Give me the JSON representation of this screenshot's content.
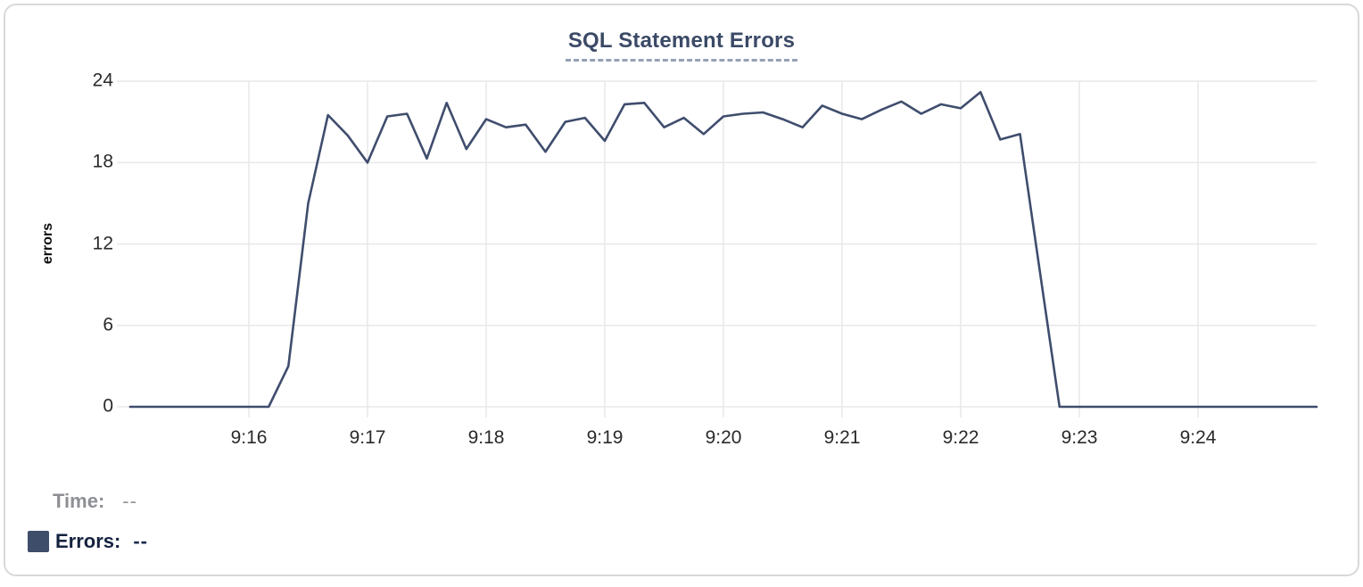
{
  "chart": {
    "accent_color": "#3b4a67",
    "grid_color": "#e8e8e8",
    "card_border_color": "#d9d9d9"
  },
  "readout": {
    "time_label": "Time:",
    "time_value": "--",
    "errors_label": "Errors:",
    "errors_value": "--",
    "swatch_color": "#3e4d6a"
  },
  "chart_data": {
    "type": "line",
    "title": "SQL Statement Errors",
    "xlabel": "",
    "ylabel": "errors",
    "grid": true,
    "legend_position": "bottom-left",
    "line_color": "#3f4d6d",
    "x_ticks": [
      "9:16",
      "9:17",
      "9:18",
      "9:19",
      "9:20",
      "9:21",
      "9:22",
      "9:23",
      "9:24"
    ],
    "y_ticks": [
      0,
      6,
      12,
      18,
      24
    ],
    "ylim": [
      0,
      24
    ],
    "x_range": [
      "9:15:00",
      "9:25:00"
    ],
    "series": [
      {
        "name": "Errors",
        "points": [
          [
            "9:15:00",
            0
          ],
          [
            "9:15:10",
            0
          ],
          [
            "9:15:20",
            0
          ],
          [
            "9:15:30",
            0
          ],
          [
            "9:15:40",
            0
          ],
          [
            "9:15:50",
            0
          ],
          [
            "9:16:00",
            0
          ],
          [
            "9:16:10",
            0
          ],
          [
            "9:16:20",
            3
          ],
          [
            "9:16:30",
            15
          ],
          [
            "9:16:40",
            21.5
          ],
          [
            "9:16:50",
            20
          ],
          [
            "9:17:00",
            18
          ],
          [
            "9:17:10",
            21.4
          ],
          [
            "9:17:20",
            21.6
          ],
          [
            "9:17:30",
            18.3
          ],
          [
            "9:17:40",
            22.4
          ],
          [
            "9:17:50",
            19
          ],
          [
            "9:18:00",
            21.2
          ],
          [
            "9:18:10",
            20.6
          ],
          [
            "9:18:20",
            20.8
          ],
          [
            "9:18:30",
            18.8
          ],
          [
            "9:18:40",
            21
          ],
          [
            "9:18:50",
            21.3
          ],
          [
            "9:19:00",
            19.6
          ],
          [
            "9:19:10",
            22.3
          ],
          [
            "9:19:20",
            22.4
          ],
          [
            "9:19:30",
            20.6
          ],
          [
            "9:19:40",
            21.3
          ],
          [
            "9:19:50",
            20.1
          ],
          [
            "9:20:00",
            21.4
          ],
          [
            "9:20:10",
            21.6
          ],
          [
            "9:20:20",
            21.7
          ],
          [
            "9:20:30",
            21.2
          ],
          [
            "9:20:40",
            20.6
          ],
          [
            "9:20:50",
            22.2
          ],
          [
            "9:21:00",
            21.6
          ],
          [
            "9:21:10",
            21.2
          ],
          [
            "9:21:20",
            21.9
          ],
          [
            "9:21:30",
            22.5
          ],
          [
            "9:21:40",
            21.6
          ],
          [
            "9:21:50",
            22.3
          ],
          [
            "9:22:00",
            22.0
          ],
          [
            "9:22:10",
            23.2
          ],
          [
            "9:22:20",
            19.7
          ],
          [
            "9:22:30",
            20.1
          ],
          [
            "9:22:40",
            10
          ],
          [
            "9:22:50",
            0
          ],
          [
            "9:23:00",
            0
          ],
          [
            "9:23:10",
            0
          ],
          [
            "9:23:20",
            0
          ],
          [
            "9:23:30",
            0
          ],
          [
            "9:23:40",
            0
          ],
          [
            "9:23:50",
            0
          ],
          [
            "9:24:00",
            0
          ],
          [
            "9:24:10",
            0
          ],
          [
            "9:24:20",
            0
          ],
          [
            "9:24:30",
            0
          ],
          [
            "9:24:40",
            0
          ],
          [
            "9:24:50",
            0
          ],
          [
            "9:25:00",
            0
          ]
        ]
      }
    ]
  }
}
